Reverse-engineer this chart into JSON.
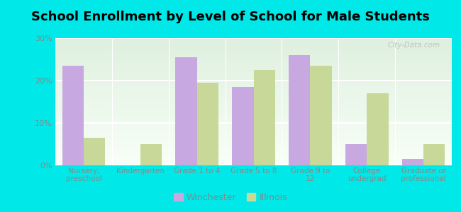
{
  "title": "School Enrollment by Level of School for Male Students",
  "categories": [
    "Nursery,\npreschool",
    "Kindergarten",
    "Grade 1 to 4",
    "Grade 5 to 8",
    "Grade 9 to\n12",
    "College\nundergrad",
    "Graduate or\nprofessional"
  ],
  "winchester": [
    23.5,
    0,
    25.5,
    18.5,
    26.0,
    5.0,
    1.5
  ],
  "illinois": [
    6.5,
    5.0,
    19.5,
    22.5,
    23.5,
    17.0,
    5.0
  ],
  "winchester_color": "#c8a8e0",
  "illinois_color": "#c8d898",
  "background_color": "#00e8e8",
  "plot_bg_top": "#e8f5e8",
  "plot_bg_bottom": "#f5ffe8",
  "title_fontsize": 13,
  "ylim": [
    0,
    30
  ],
  "yticks": [
    0,
    10,
    20,
    30
  ],
  "bar_width": 0.38,
  "legend_winchester": "Winchester",
  "legend_illinois": "Illinois",
  "tick_color": "#888888",
  "watermark": "City-Data.com"
}
